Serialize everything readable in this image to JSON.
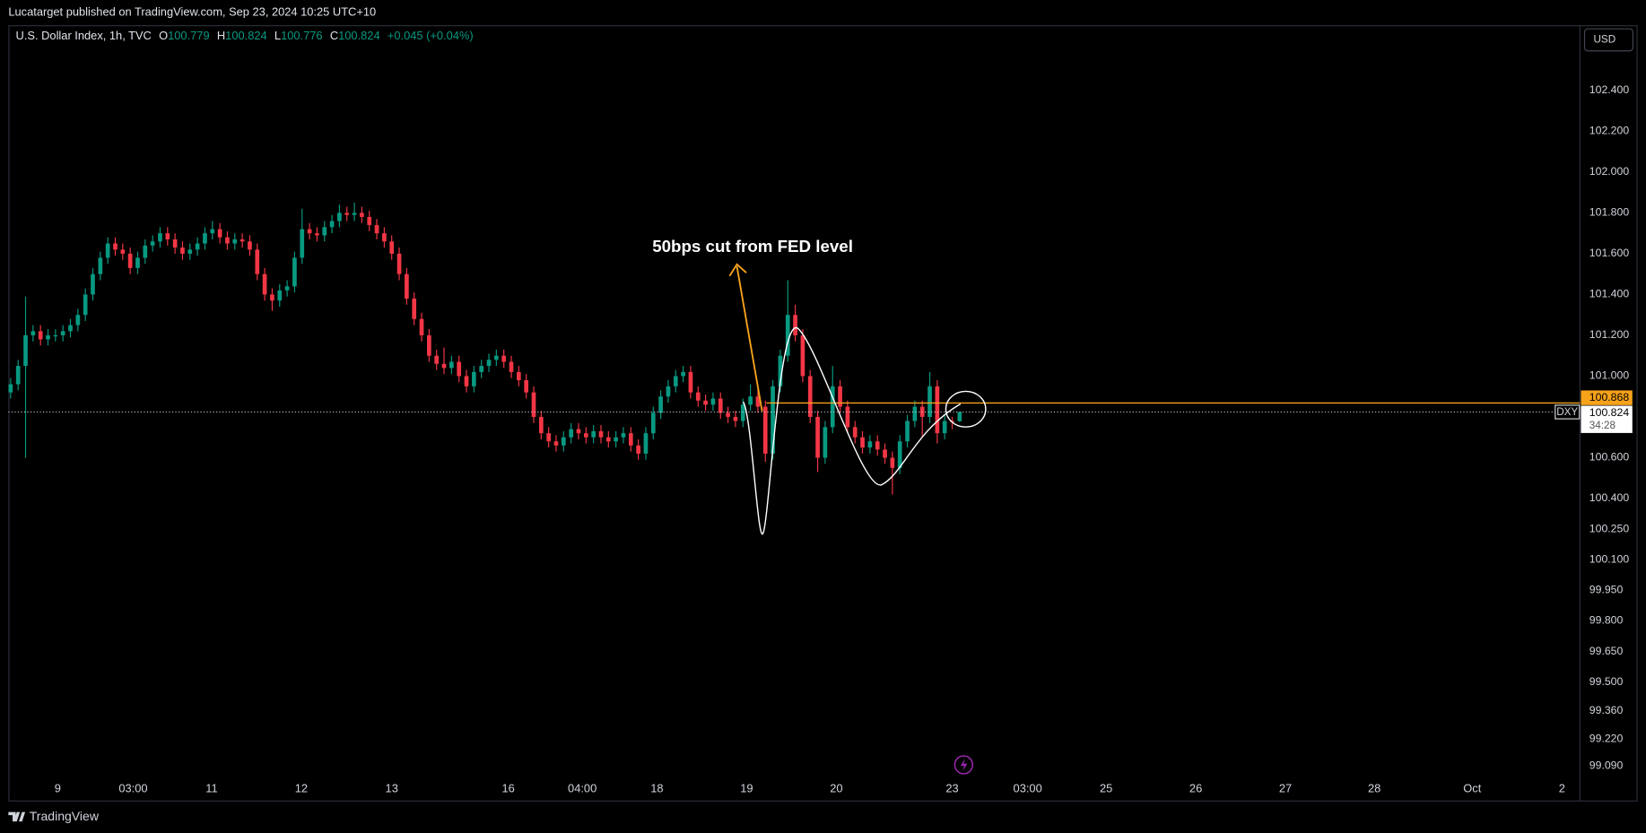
{
  "header": {
    "text": "Lucatarget published on TradingView.com, Sep 23, 2024 10:25 UTC+10"
  },
  "chart_data": {
    "type": "candlestick",
    "symbol_title": "U.S. Dollar Index, 1h, TVC",
    "legend": {
      "open_label": "O",
      "open": 100.779,
      "high_label": "H",
      "high": 100.824,
      "low_label": "L",
      "low": 100.776,
      "close_label": "C",
      "close": 100.824,
      "change": "+0.045 (+0.04%)"
    },
    "currency": "USD",
    "annotation": "50bps cut from FED level",
    "level": {
      "value": 100.868,
      "color": "#f7a21b"
    },
    "last_price": {
      "symbol": "DXY",
      "value": 100.824,
      "countdown": "34:28"
    },
    "up_color": "#089981",
    "down_color": "#f23645",
    "xlim": [
      -0.3,
      210
    ],
    "xticks": [
      {
        "value": 6.3,
        "label": "9"
      },
      {
        "value": 16.4,
        "label": "03:00"
      },
      {
        "value": 26.9,
        "label": "11"
      },
      {
        "value": 38.9,
        "label": "12"
      },
      {
        "value": 51.0,
        "label": "13"
      },
      {
        "value": 66.6,
        "label": "16"
      },
      {
        "value": 76.5,
        "label": "04:00"
      },
      {
        "value": 86.5,
        "label": "18"
      },
      {
        "value": 98.5,
        "label": "19"
      },
      {
        "value": 110.5,
        "label": "20"
      },
      {
        "value": 126.0,
        "label": "23"
      },
      {
        "value": 136.1,
        "label": "03:00"
      },
      {
        "value": 146.6,
        "label": "25"
      },
      {
        "value": 158.6,
        "label": "26"
      },
      {
        "value": 170.6,
        "label": "27"
      },
      {
        "value": 182.5,
        "label": "28"
      },
      {
        "value": 195.6,
        "label": "Oct"
      },
      {
        "value": 207.6,
        "label": "2"
      }
    ],
    "ylim": [
      98.92,
      102.72
    ],
    "yticks": [
      {
        "value": 102.4,
        "label": "102.400"
      },
      {
        "value": 102.2,
        "label": "102.200"
      },
      {
        "value": 102,
        "label": "102.000"
      },
      {
        "value": 101.8,
        "label": "101.800"
      },
      {
        "value": 101.6,
        "label": "101.600"
      },
      {
        "value": 101.4,
        "label": "101.400"
      },
      {
        "value": 101.2,
        "label": "101.200"
      },
      {
        "value": 101,
        "label": "101.000"
      },
      {
        "value": 100.6,
        "label": "100.600"
      },
      {
        "value": 100.4,
        "label": "100.400"
      },
      {
        "value": 100.25,
        "label": "100.250"
      },
      {
        "value": 100.1,
        "label": "100.100"
      },
      {
        "value": 99.95,
        "label": "99.950"
      },
      {
        "value": 99.8,
        "label": "99.800"
      },
      {
        "value": 99.65,
        "label": "99.650"
      },
      {
        "value": 99.5,
        "label": "99.500"
      },
      {
        "value": 99.36,
        "label": "99.360"
      },
      {
        "value": 99.22,
        "label": "99.220"
      },
      {
        "value": 99.09,
        "label": "99.090"
      }
    ],
    "candles": [
      [
        100.92,
        100.99,
        100.89,
        100.96
      ],
      [
        100.96,
        101.08,
        100.93,
        101.05
      ],
      [
        101.05,
        101.39,
        100.6,
        101.2
      ],
      [
        101.2,
        101.25,
        101.17,
        101.22
      ],
      [
        101.22,
        101.25,
        101.15,
        101.18
      ],
      [
        101.18,
        101.23,
        101.15,
        101.2
      ],
      [
        101.2,
        101.23,
        101.17,
        101.2
      ],
      [
        101.2,
        101.25,
        101.17,
        101.22
      ],
      [
        101.22,
        101.28,
        101.19,
        101.25
      ],
      [
        101.25,
        101.33,
        101.22,
        101.3
      ],
      [
        101.3,
        101.43,
        101.27,
        101.4
      ],
      [
        101.4,
        101.53,
        101.37,
        101.5
      ],
      [
        101.5,
        101.61,
        101.47,
        101.58
      ],
      [
        101.58,
        101.68,
        101.55,
        101.65
      ],
      [
        101.65,
        101.68,
        101.59,
        101.62
      ],
      [
        101.62,
        101.65,
        101.57,
        101.6
      ],
      [
        101.6,
        101.63,
        101.5,
        101.53
      ],
      [
        101.53,
        101.61,
        101.5,
        101.58
      ],
      [
        101.58,
        101.67,
        101.55,
        101.64
      ],
      [
        101.64,
        101.69,
        101.61,
        101.66
      ],
      [
        101.66,
        101.73,
        101.63,
        101.7
      ],
      [
        101.7,
        101.73,
        101.64,
        101.67
      ],
      [
        101.67,
        101.7,
        101.6,
        101.63
      ],
      [
        101.63,
        101.66,
        101.57,
        101.6
      ],
      [
        101.6,
        101.65,
        101.57,
        101.62
      ],
      [
        101.62,
        101.68,
        101.59,
        101.65
      ],
      [
        101.65,
        101.73,
        101.62,
        101.7
      ],
      [
        101.7,
        101.76,
        101.67,
        101.72
      ],
      [
        101.72,
        101.75,
        101.65,
        101.68
      ],
      [
        101.68,
        101.71,
        101.62,
        101.65
      ],
      [
        101.65,
        101.7,
        101.62,
        101.67
      ],
      [
        101.67,
        101.7,
        101.63,
        101.66
      ],
      [
        101.66,
        101.69,
        101.59,
        101.62
      ],
      [
        101.62,
        101.65,
        101.47,
        101.5
      ],
      [
        101.5,
        101.53,
        101.37,
        101.4
      ],
      [
        101.4,
        101.43,
        101.32,
        101.37
      ],
      [
        101.37,
        101.45,
        101.34,
        101.42
      ],
      [
        101.42,
        101.47,
        101.39,
        101.44
      ],
      [
        101.44,
        101.61,
        101.41,
        101.58
      ],
      [
        101.58,
        101.82,
        101.55,
        101.72
      ],
      [
        101.72,
        101.75,
        101.67,
        101.7
      ],
      [
        101.7,
        101.73,
        101.66,
        101.69
      ],
      [
        101.69,
        101.76,
        101.66,
        101.73
      ],
      [
        101.73,
        101.79,
        101.7,
        101.76
      ],
      [
        101.76,
        101.84,
        101.73,
        101.8
      ],
      [
        101.8,
        101.83,
        101.76,
        101.79
      ],
      [
        101.79,
        101.85,
        101.76,
        101.8
      ],
      [
        101.8,
        101.83,
        101.75,
        101.78
      ],
      [
        101.78,
        101.81,
        101.71,
        101.74
      ],
      [
        101.74,
        101.77,
        101.67,
        101.7
      ],
      [
        101.7,
        101.73,
        101.63,
        101.66
      ],
      [
        101.66,
        101.69,
        101.57,
        101.6
      ],
      [
        101.6,
        101.63,
        101.47,
        101.5
      ],
      [
        101.5,
        101.53,
        101.35,
        101.38
      ],
      [
        101.38,
        101.41,
        101.25,
        101.28
      ],
      [
        101.28,
        101.31,
        101.17,
        101.2
      ],
      [
        101.2,
        101.23,
        101.07,
        101.1
      ],
      [
        101.1,
        101.13,
        101.03,
        101.06
      ],
      [
        101.06,
        101.14,
        101.01,
        101.04
      ],
      [
        101.04,
        101.1,
        101.01,
        101.07
      ],
      [
        101.07,
        101.1,
        100.97,
        101.0
      ],
      [
        101.0,
        101.03,
        100.92,
        100.95
      ],
      [
        100.95,
        101.05,
        100.92,
        101.02
      ],
      [
        101.02,
        101.08,
        100.99,
        101.05
      ],
      [
        101.05,
        101.11,
        101.02,
        101.08
      ],
      [
        101.08,
        101.13,
        101.05,
        101.1
      ],
      [
        101.1,
        101.13,
        101.04,
        101.07
      ],
      [
        101.07,
        101.1,
        100.99,
        101.02
      ],
      [
        101.02,
        101.05,
        100.95,
        100.98
      ],
      [
        100.98,
        101.01,
        100.89,
        100.92
      ],
      [
        100.92,
        100.95,
        100.77,
        100.8
      ],
      [
        100.8,
        100.83,
        100.69,
        100.72
      ],
      [
        100.72,
        100.75,
        100.65,
        100.68
      ],
      [
        100.68,
        100.71,
        100.63,
        100.66
      ],
      [
        100.66,
        100.73,
        100.63,
        100.7
      ],
      [
        100.7,
        100.77,
        100.67,
        100.74
      ],
      [
        100.74,
        100.77,
        100.69,
        100.72
      ],
      [
        100.72,
        100.75,
        100.67,
        100.7
      ],
      [
        100.7,
        100.76,
        100.67,
        100.73
      ],
      [
        100.73,
        100.76,
        100.67,
        100.7
      ],
      [
        100.7,
        100.73,
        100.65,
        100.68
      ],
      [
        100.68,
        100.73,
        100.65,
        100.7
      ],
      [
        100.7,
        100.75,
        100.67,
        100.72
      ],
      [
        100.72,
        100.75,
        100.63,
        100.66
      ],
      [
        100.66,
        100.69,
        100.59,
        100.62
      ],
      [
        100.62,
        100.75,
        100.59,
        100.72
      ],
      [
        100.72,
        100.85,
        100.69,
        100.82
      ],
      [
        100.82,
        100.93,
        100.79,
        100.9
      ],
      [
        100.9,
        100.98,
        100.87,
        100.95
      ],
      [
        100.95,
        101.03,
        100.92,
        101.0
      ],
      [
        101.0,
        101.05,
        100.97,
        101.02
      ],
      [
        101.02,
        101.05,
        100.89,
        100.92
      ],
      [
        100.92,
        100.95,
        100.85,
        100.88
      ],
      [
        100.88,
        100.91,
        100.83,
        100.86
      ],
      [
        100.86,
        100.92,
        100.83,
        100.89
      ],
      [
        100.89,
        100.92,
        100.79,
        100.82
      ],
      [
        100.82,
        100.85,
        100.77,
        100.8
      ],
      [
        100.8,
        100.83,
        100.75,
        100.78
      ],
      [
        100.78,
        100.89,
        100.75,
        100.86
      ],
      [
        100.86,
        100.96,
        100.83,
        100.9
      ],
      [
        100.9,
        100.94,
        100.82,
        100.85
      ],
      [
        100.85,
        100.88,
        100.58,
        100.62
      ],
      [
        100.62,
        100.98,
        100.59,
        100.95
      ],
      [
        100.95,
        101.13,
        100.92,
        101.1
      ],
      [
        101.1,
        101.47,
        101.07,
        101.3
      ],
      [
        101.3,
        101.35,
        101.17,
        101.2
      ],
      [
        101.2,
        101.23,
        100.97,
        101.0
      ],
      [
        101.0,
        101.03,
        100.77,
        100.8
      ],
      [
        100.8,
        100.83,
        100.53,
        100.6
      ],
      [
        100.6,
        100.78,
        100.57,
        100.75
      ],
      [
        100.75,
        101.05,
        100.72,
        100.95
      ],
      [
        100.95,
        100.98,
        100.82,
        100.85
      ],
      [
        100.85,
        100.88,
        100.72,
        100.75
      ],
      [
        100.75,
        100.78,
        100.67,
        100.7
      ],
      [
        100.7,
        100.73,
        100.62,
        100.65
      ],
      [
        100.65,
        100.71,
        100.62,
        100.68
      ],
      [
        100.68,
        100.71,
        100.61,
        100.64
      ],
      [
        100.64,
        100.67,
        100.57,
        100.6
      ],
      [
        100.6,
        100.63,
        100.42,
        100.55
      ],
      [
        100.55,
        100.71,
        100.52,
        100.68
      ],
      [
        100.68,
        100.81,
        100.65,
        100.78
      ],
      [
        100.78,
        100.88,
        100.75,
        100.85
      ],
      [
        100.85,
        100.88,
        100.7,
        100.8
      ],
      [
        100.8,
        101.02,
        100.77,
        100.95
      ],
      [
        100.95,
        100.98,
        100.67,
        100.72
      ],
      [
        100.72,
        100.81,
        100.69,
        100.78
      ],
      [
        100.78,
        100.8,
        100.74,
        100.779
      ],
      [
        100.779,
        100.824,
        100.776,
        100.824
      ]
    ]
  },
  "footer": {
    "brand": "TradingView"
  }
}
